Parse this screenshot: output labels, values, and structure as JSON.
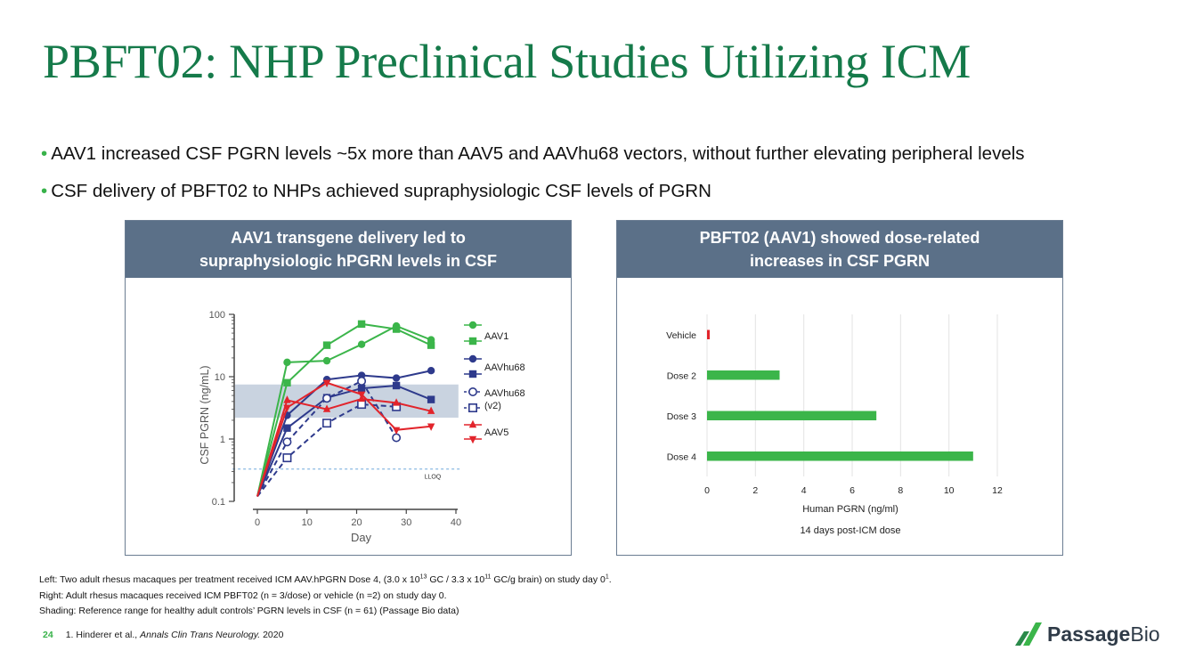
{
  "slide": {
    "title": "PBFT02: NHP Preclinical Studies Utilizing ICM",
    "bullets": [
      "AAV1 increased CSF PGRN levels ~5x more than AAV5 and AAVhu68 vectors, without further elevating peripheral levels",
      "CSF delivery of PBFT02 to NHPs achieved supraphysiologic CSF levels of PGRN"
    ],
    "left_panel_title": [
      "AAV1 transgene delivery led to",
      "supraphysiologic hPGRN levels in CSF"
    ],
    "right_panel_title": [
      "PBFT02 (AAV1) showed dose-related",
      "increases in CSF PGRN"
    ],
    "notes": {
      "left_prefix": "Left: Two adult rhesus macaques per treatment received ICM AAV.hPGRN Dose 4, (3.0 x 10",
      "left_sup1": "13",
      "left_mid": " GC / 3.3 x 10",
      "left_sup2": "11",
      "left_suffix": " GC/g brain) on study day 0",
      "left_sup3": "1",
      "left_end": ".",
      "right": "Right: Adult rhesus macaques received ICM PBFT02 (n = 3/dose) or vehicle (n =2) on study day 0.",
      "shading": "Shading: Reference range for healthy adult controls’ PGRN levels in CSF (n = 61) (Passage Bio data)"
    },
    "footer": {
      "page": "24",
      "ref_prefix": "1. Hinderer et al., ",
      "ref_journal": "Annals Clin Trans Neurology.",
      "ref_year": " 2020"
    },
    "logo": {
      "bold": "Passage",
      "light": "Bio"
    }
  },
  "colors": {
    "title": "#157a4a",
    "bullet": "#38b24a",
    "panel_header": "#5b7088",
    "aav1": "#3bb54a",
    "aavhu68": "#2e3a8c",
    "aav5": "#e2242b",
    "shading": "#c9d3e0",
    "lloq": "#6fa8dc",
    "bar": "#3bb54a",
    "vehicle_bar": "#e2242b"
  },
  "chart_data": [
    {
      "type": "line",
      "title": "",
      "xlabel": "Day",
      "ylabel": "CSF PGRN (ng/mL)",
      "xlim": [
        0,
        40
      ],
      "ylim": [
        0.1,
        100
      ],
      "yscale": "log",
      "xticks": [
        0,
        10,
        20,
        30,
        40
      ],
      "yticks": [
        0.1,
        1,
        10,
        100
      ],
      "ytick_labels": [
        "0.1",
        "1",
        "10",
        "100"
      ],
      "shaded_range": [
        2.2,
        7.5
      ],
      "lloq": {
        "value": 0.33,
        "label": "LLOQ"
      },
      "legend_groups": [
        "AAV1",
        "AAVhu68",
        "AAVhu68 (v2)",
        "AAV5"
      ],
      "series": [
        {
          "name": "AAV1",
          "animal": 1,
          "marker": "circle",
          "dashed": false,
          "color": "aav1",
          "points": [
            [
              0,
              0.12
            ],
            [
              6,
              17
            ],
            [
              14,
              18
            ],
            [
              21,
              33
            ],
            [
              28,
              65
            ],
            [
              35,
              39
            ]
          ]
        },
        {
          "name": "AAV1",
          "animal": 2,
          "marker": "square",
          "dashed": false,
          "color": "aav1",
          "points": [
            [
              0,
              0.12
            ],
            [
              6,
              8
            ],
            [
              14,
              32
            ],
            [
              21,
              70
            ],
            [
              28,
              58
            ],
            [
              35,
              32
            ]
          ]
        },
        {
          "name": "AAVhu68",
          "animal": 1,
          "marker": "circle",
          "dashed": false,
          "color": "aavhu68",
          "points": [
            [
              0,
              0.12
            ],
            [
              6,
              2.4
            ],
            [
              14,
              9
            ],
            [
              21,
              10.5
            ],
            [
              28,
              9.5
            ],
            [
              35,
              12.5
            ]
          ]
        },
        {
          "name": "AAVhu68",
          "animal": 2,
          "marker": "square",
          "dashed": false,
          "color": "aavhu68",
          "points": [
            [
              0,
              0.12
            ],
            [
              6,
              1.5
            ],
            [
              14,
              4.6
            ],
            [
              21,
              6.5
            ],
            [
              28,
              7.2
            ],
            [
              35,
              4.3
            ]
          ]
        },
        {
          "name": "AAVhu68 (v2)",
          "animal": 1,
          "marker": "open-circle",
          "dashed": true,
          "color": "aavhu68",
          "points": [
            [
              0,
              0.12
            ],
            [
              6,
              0.9
            ],
            [
              14,
              4.5
            ],
            [
              21,
              8.5
            ],
            [
              28,
              1.05
            ]
          ]
        },
        {
          "name": "AAVhu68 (v2)",
          "animal": 2,
          "marker": "open-square",
          "dashed": true,
          "color": "aavhu68",
          "points": [
            [
              0,
              0.12
            ],
            [
              6,
              0.5
            ],
            [
              14,
              1.8
            ],
            [
              21,
              3.6
            ],
            [
              28,
              3.3
            ]
          ]
        },
        {
          "name": "AAV5",
          "animal": 1,
          "marker": "triangle-up",
          "dashed": false,
          "color": "aav5",
          "points": [
            [
              0,
              0.12
            ],
            [
              6,
              4.2
            ],
            [
              14,
              3
            ],
            [
              21,
              4.4
            ],
            [
              28,
              3.8
            ],
            [
              35,
              2.8
            ]
          ]
        },
        {
          "name": "AAV5",
          "animal": 2,
          "marker": "triangle-down",
          "dashed": false,
          "color": "aav5",
          "points": [
            [
              0,
              0.12
            ],
            [
              6,
              3.2
            ],
            [
              14,
              8
            ],
            [
              21,
              5.2
            ],
            [
              28,
              1.4
            ],
            [
              35,
              1.6
            ]
          ]
        }
      ]
    },
    {
      "type": "bar",
      "orientation": "horizontal",
      "categories": [
        "Vehicle",
        "Dose 2",
        "Dose 3",
        "Dose 4"
      ],
      "values": [
        0.1,
        3,
        7,
        11
      ],
      "xlabel": "Human PGRN (ng/ml)",
      "caption": "14 days post-ICM dose",
      "xlim": [
        0,
        12
      ],
      "xticks": [
        0,
        2,
        4,
        6,
        8,
        10,
        12
      ],
      "grid": true
    }
  ]
}
